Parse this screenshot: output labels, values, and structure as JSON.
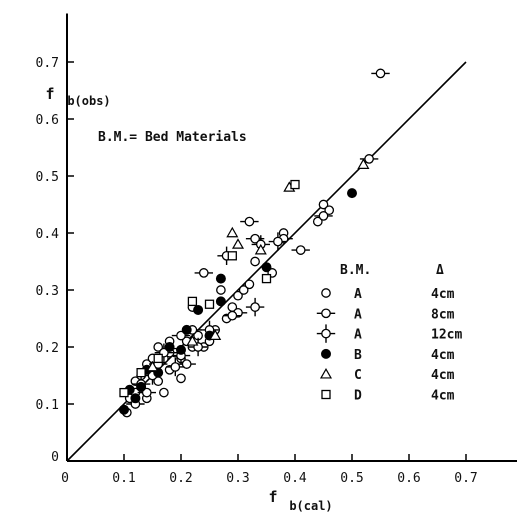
{
  "chart_data": {
    "type": "scatter",
    "x_axis": {
      "label_main": "f",
      "label_sub": "b(cal)",
      "range": [
        0,
        0.8
      ],
      "ticks": [
        "0",
        "0.1",
        "0.2",
        "0.3",
        "0.4",
        "0.5",
        "0.6",
        "0.7"
      ]
    },
    "y_axis": {
      "label_main": "f",
      "label_sub": "b(obs)",
      "range": [
        0,
        0.75
      ],
      "ticks": [
        "0",
        "0.1",
        "0.2",
        "0.3",
        "0.4",
        "0.5",
        "0.6",
        "0.7"
      ]
    },
    "annotation": "B.M.= Bed Materials",
    "reference_line": {
      "type": "y=x",
      "from": [
        0,
        0
      ],
      "to": [
        0.7,
        0.7
      ]
    },
    "grid": false,
    "legend": {
      "position": "right",
      "header_bm": "B.M.",
      "header_delta": "Δ",
      "entries": [
        {
          "marker": "open-circle",
          "bm": "A",
          "delta": "4cm"
        },
        {
          "marker": "circle-tick-h",
          "bm": "A",
          "delta": "8cm"
        },
        {
          "marker": "circle-cross",
          "bm": "A",
          "delta": "12cm"
        },
        {
          "marker": "filled-circle",
          "bm": "B",
          "delta": "4cm"
        },
        {
          "marker": "open-triangle",
          "bm": "C",
          "delta": "4cm"
        },
        {
          "marker": "open-square",
          "bm": "D",
          "delta": "4cm"
        }
      ]
    },
    "series": [
      {
        "marker": "open-circle",
        "points": [
          [
            0.105,
            0.085
          ],
          [
            0.11,
            0.11
          ],
          [
            0.12,
            0.12
          ],
          [
            0.12,
            0.14
          ],
          [
            0.13,
            0.15
          ],
          [
            0.13,
            0.13
          ],
          [
            0.14,
            0.17
          ],
          [
            0.14,
            0.11
          ],
          [
            0.15,
            0.18
          ],
          [
            0.15,
            0.16
          ],
          [
            0.16,
            0.14
          ],
          [
            0.16,
            0.2
          ],
          [
            0.17,
            0.12
          ],
          [
            0.17,
            0.18
          ],
          [
            0.18,
            0.21
          ],
          [
            0.18,
            0.16
          ],
          [
            0.19,
            0.19
          ],
          [
            0.2,
            0.145
          ],
          [
            0.2,
            0.18
          ],
          [
            0.21,
            0.21
          ],
          [
            0.22,
            0.2
          ],
          [
            0.23,
            0.22
          ],
          [
            0.24,
            0.2
          ],
          [
            0.25,
            0.21
          ],
          [
            0.26,
            0.23
          ],
          [
            0.22,
            0.27
          ],
          [
            0.27,
            0.3
          ],
          [
            0.28,
            0.25
          ],
          [
            0.29,
            0.27
          ],
          [
            0.3,
            0.29
          ],
          [
            0.31,
            0.3
          ],
          [
            0.32,
            0.31
          ],
          [
            0.33,
            0.35
          ],
          [
            0.36,
            0.33
          ],
          [
            0.38,
            0.4
          ],
          [
            0.44,
            0.42
          ],
          [
            0.45,
            0.45
          ],
          [
            0.46,
            0.44
          ]
        ]
      },
      {
        "marker": "circle-tick-h",
        "points": [
          [
            0.12,
            0.1
          ],
          [
            0.14,
            0.12
          ],
          [
            0.16,
            0.17
          ],
          [
            0.18,
            0.19
          ],
          [
            0.2,
            0.22
          ],
          [
            0.22,
            0.23
          ],
          [
            0.24,
            0.33
          ],
          [
            0.3,
            0.26
          ],
          [
            0.32,
            0.42
          ],
          [
            0.33,
            0.39
          ],
          [
            0.38,
            0.39
          ],
          [
            0.41,
            0.37
          ],
          [
            0.45,
            0.43
          ],
          [
            0.53,
            0.53
          ],
          [
            0.55,
            0.68
          ],
          [
            0.29,
            0.255
          ],
          [
            0.21,
            0.17
          ]
        ]
      },
      {
        "marker": "circle-cross",
        "points": [
          [
            0.13,
            0.135
          ],
          [
            0.15,
            0.15
          ],
          [
            0.17,
            0.19
          ],
          [
            0.19,
            0.165
          ],
          [
            0.2,
            0.185
          ],
          [
            0.23,
            0.2
          ],
          [
            0.25,
            0.23
          ],
          [
            0.28,
            0.36
          ],
          [
            0.33,
            0.27
          ],
          [
            0.34,
            0.38
          ],
          [
            0.37,
            0.385
          ]
        ]
      },
      {
        "marker": "filled-circle",
        "points": [
          [
            0.1,
            0.09
          ],
          [
            0.11,
            0.125
          ],
          [
            0.12,
            0.11
          ],
          [
            0.13,
            0.13
          ],
          [
            0.14,
            0.16
          ],
          [
            0.16,
            0.155
          ],
          [
            0.18,
            0.2
          ],
          [
            0.2,
            0.195
          ],
          [
            0.21,
            0.23
          ],
          [
            0.23,
            0.265
          ],
          [
            0.25,
            0.22
          ],
          [
            0.27,
            0.32
          ],
          [
            0.27,
            0.28
          ],
          [
            0.35,
            0.34
          ],
          [
            0.5,
            0.47
          ]
        ]
      },
      {
        "marker": "open-triangle",
        "points": [
          [
            0.15,
            0.165
          ],
          [
            0.22,
            0.21
          ],
          [
            0.26,
            0.22
          ],
          [
            0.29,
            0.4
          ],
          [
            0.3,
            0.38
          ],
          [
            0.34,
            0.37
          ],
          [
            0.39,
            0.48
          ],
          [
            0.52,
            0.52
          ]
        ]
      },
      {
        "marker": "open-square",
        "points": [
          [
            0.1,
            0.12
          ],
          [
            0.13,
            0.155
          ],
          [
            0.16,
            0.18
          ],
          [
            0.22,
            0.28
          ],
          [
            0.25,
            0.275
          ],
          [
            0.29,
            0.36
          ],
          [
            0.35,
            0.32
          ],
          [
            0.4,
            0.485
          ]
        ]
      }
    ]
  }
}
